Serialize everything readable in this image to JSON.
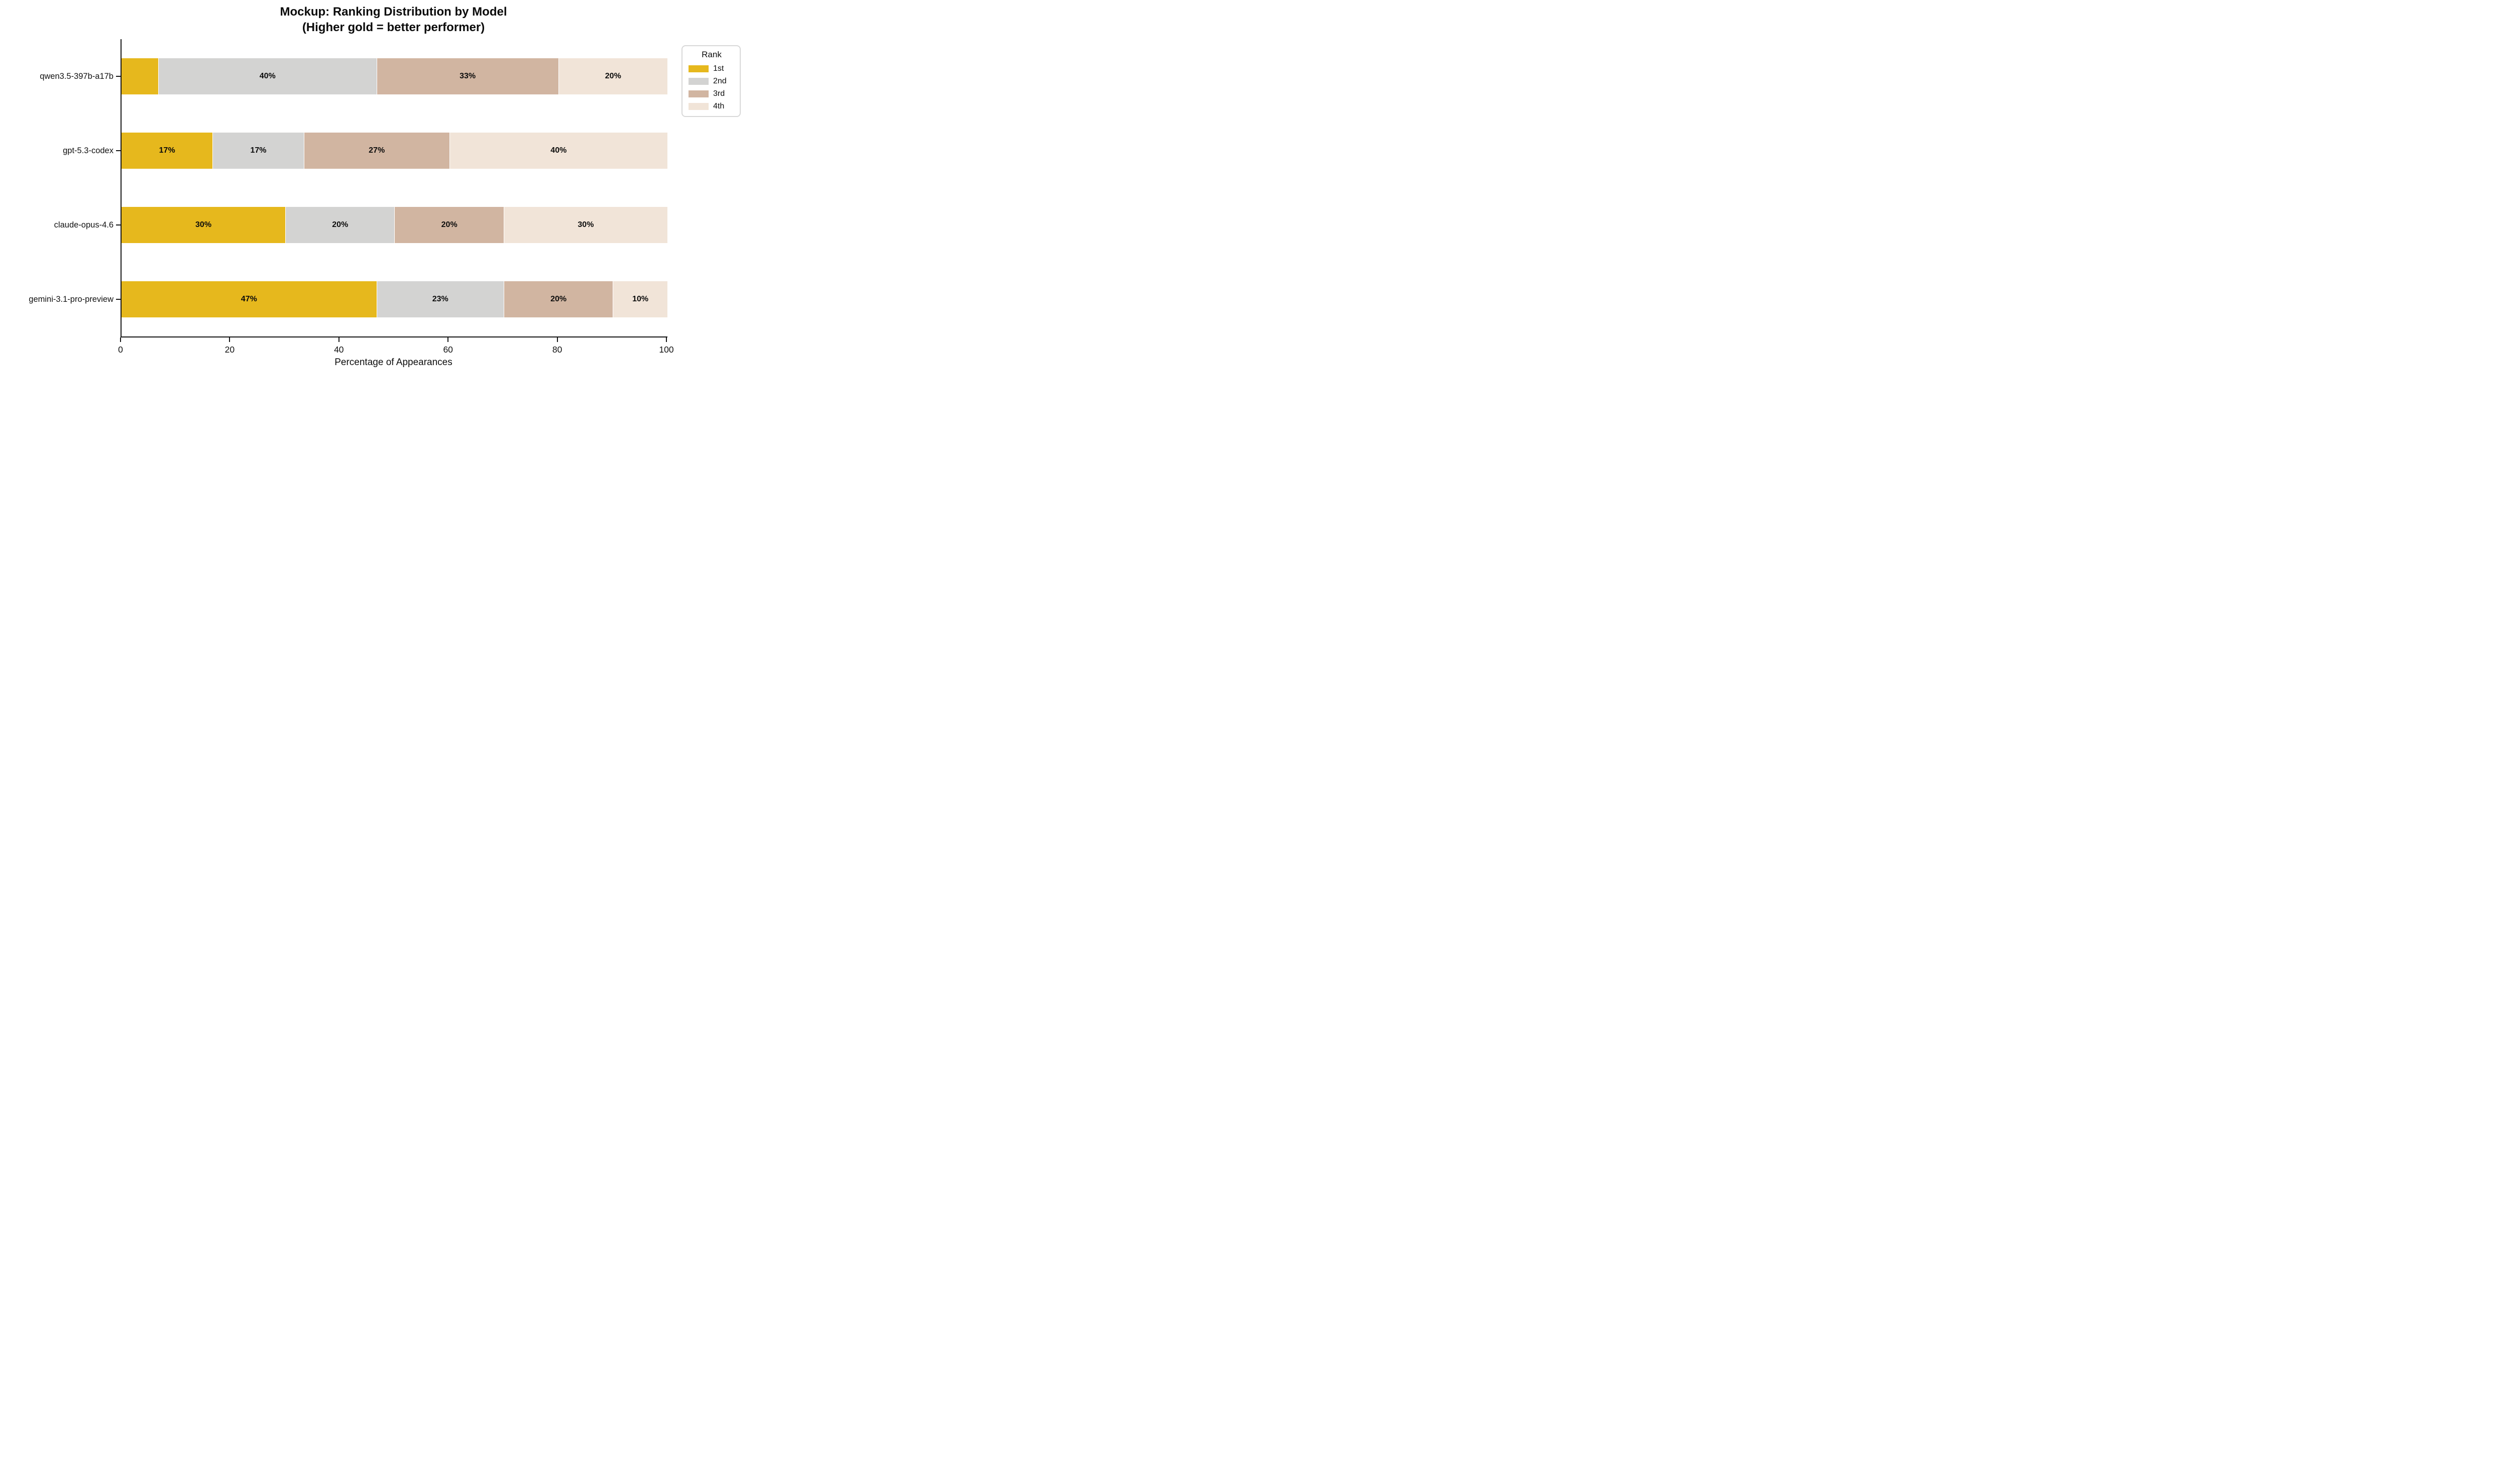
{
  "title": {
    "line1": "Mockup: Ranking Distribution by Model",
    "line2": "(Higher gold = better performer)"
  },
  "chart_data": {
    "type": "bar",
    "orientation": "horizontal",
    "stacked": true,
    "title": "Mockup: Ranking Distribution by Model (Higher gold = better performer)",
    "xlabel": "Percentage of Appearances",
    "ylabel": "",
    "xlim": [
      0,
      100
    ],
    "xticks": [
      "0",
      "20",
      "40",
      "60",
      "80",
      "100"
    ],
    "xtick_values": [
      0,
      20,
      40,
      60,
      80,
      100
    ],
    "grid": false,
    "categories": [
      "qwen3.5-397b-a17b",
      "gpt-5.3-codex",
      "claude-opus-4.6",
      "gemini-3.1-pro-preview"
    ],
    "series": [
      {
        "name": "1st",
        "color": "#e6b81d",
        "values": [
          6.7,
          16.7,
          30,
          46.7
        ],
        "labels": [
          "",
          "17%",
          "30%",
          "47%"
        ]
      },
      {
        "name": "2nd",
        "color": "#d3d3d2",
        "values": [
          40,
          16.7,
          20,
          23.3
        ],
        "labels": [
          "40%",
          "17%",
          "20%",
          "23%"
        ]
      },
      {
        "name": "3rd",
        "color": "#d1b5a1",
        "values": [
          33.3,
          26.7,
          20,
          20
        ],
        "labels": [
          "33%",
          "27%",
          "20%",
          "20%"
        ]
      },
      {
        "name": "4th",
        "color": "#f1e4d8",
        "values": [
          20,
          40,
          30,
          10
        ],
        "labels": [
          "20%",
          "40%",
          "30%",
          "10%"
        ]
      }
    ],
    "legend": {
      "title": "Rank",
      "position": "upper-right-outside",
      "entries": [
        "1st",
        "2nd",
        "3rd",
        "4th"
      ]
    },
    "colors": {
      "background": "#ffffff",
      "axis": "#141414",
      "text": "#0d0d0d",
      "legend_border": "#d8d8d8"
    }
  }
}
